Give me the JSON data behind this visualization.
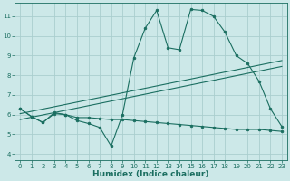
{
  "xlabel": "Humidex (Indice chaleur)",
  "bg_color": "#cce8e8",
  "grid_color": "#aacece",
  "line_color": "#1a6e60",
  "xlim": [
    -0.5,
    23.5
  ],
  "ylim": [
    3.7,
    11.7
  ],
  "xticks": [
    0,
    1,
    2,
    3,
    4,
    5,
    6,
    7,
    8,
    9,
    10,
    11,
    12,
    13,
    14,
    15,
    16,
    17,
    18,
    19,
    20,
    21,
    22,
    23
  ],
  "yticks": [
    4,
    5,
    6,
    7,
    8,
    9,
    10,
    11
  ],
  "line1_x": [
    0,
    1,
    2,
    3,
    4,
    5,
    6,
    7,
    8,
    9,
    10,
    11,
    12,
    13,
    14,
    15,
    16,
    17,
    18,
    19,
    20,
    21,
    22,
    23
  ],
  "line1_y": [
    6.3,
    5.9,
    5.6,
    6.1,
    6.0,
    5.7,
    5.55,
    5.35,
    4.4,
    6.0,
    8.9,
    10.4,
    11.3,
    9.4,
    9.3,
    11.35,
    11.3,
    11.0,
    10.2,
    9.0,
    8.6,
    7.7,
    6.3,
    5.4
  ],
  "line2_x": [
    0,
    23
  ],
  "line2_y": [
    6.05,
    8.75
  ],
  "line3_x": [
    0,
    23
  ],
  "line3_y": [
    5.75,
    8.45
  ],
  "line4_x": [
    0,
    1,
    2,
    3,
    4,
    5,
    6,
    7,
    8,
    9,
    10,
    11,
    12,
    13,
    14,
    15,
    16,
    17,
    18,
    19,
    20,
    21,
    22,
    23
  ],
  "line4_y": [
    6.3,
    5.9,
    5.6,
    6.05,
    6.0,
    5.85,
    5.85,
    5.8,
    5.75,
    5.75,
    5.7,
    5.65,
    5.6,
    5.55,
    5.5,
    5.45,
    5.4,
    5.35,
    5.3,
    5.25,
    5.25,
    5.25,
    5.2,
    5.15
  ]
}
